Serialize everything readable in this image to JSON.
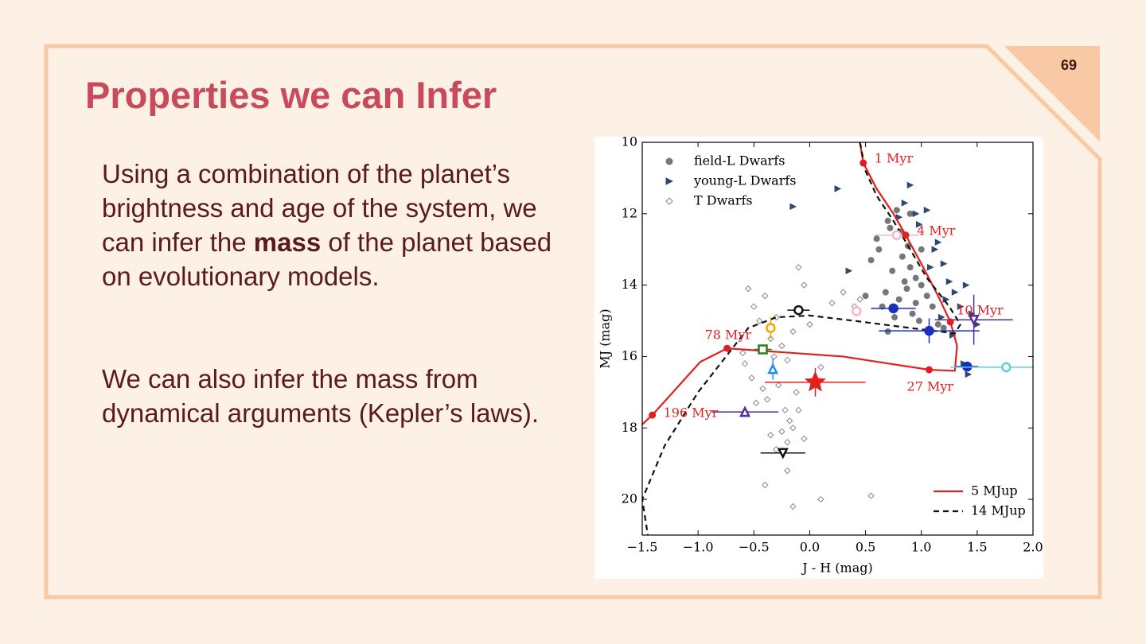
{
  "slide": {
    "page_number": "69",
    "title": "Properties we can Infer",
    "body": [
      [
        "Using a combination of the planet’s brightness and age of the system, we can infer the ",
        "mass",
        " of the planet based on evolutionary models."
      ],
      [
        "We can also infer the mass from dynamical arguments (Kepler’s laws)."
      ]
    ]
  },
  "chart_data": {
    "type": "scatter",
    "x_label": "J - H (mag)",
    "y_label": "MJ (mag)",
    "xlim": [
      -1.5,
      2.0
    ],
    "ylim": [
      21,
      10
    ],
    "xticks": [
      {
        "value": -1.5,
        "label": "−1.5"
      },
      {
        "value": -1.0,
        "label": "−1.0"
      },
      {
        "value": -0.5,
        "label": "−0.5"
      },
      {
        "value": 0.0,
        "label": "0.0"
      },
      0.5,
      {
        "value": 1.0,
        "label": "1.0"
      },
      1.5,
      {
        "value": 2.0,
        "label": "2.0"
      }
    ],
    "yticks": [
      10,
      12,
      14,
      16,
      18,
      20
    ],
    "series": [
      {
        "name": "field-L Dwarfs",
        "kind": "scatter",
        "marker": "circle",
        "color": "#777777",
        "legend": "upper left",
        "x": [
          0.55,
          0.62,
          0.7,
          0.78,
          0.82,
          0.88,
          0.9,
          0.95,
          1.0,
          1.05,
          0.68,
          0.74,
          0.8,
          0.85,
          0.92,
          0.98,
          1.1,
          1.15,
          0.6,
          0.72,
          0.83,
          0.9,
          1.0,
          0.65,
          0.76,
          0.87,
          0.95,
          1.2,
          0.5,
          0.7
        ],
        "values": [
          13.3,
          13.0,
          12.2,
          11.9,
          12.5,
          12.9,
          13.5,
          13.8,
          14.0,
          14.3,
          14.2,
          13.6,
          14.4,
          13.9,
          14.8,
          15.0,
          14.6,
          15.1,
          12.7,
          12.4,
          13.2,
          12.0,
          13.0,
          14.6,
          14.9,
          14.1,
          14.5,
          15.2,
          14.3,
          15.3
        ]
      },
      {
        "name": "young-L Dwarfs",
        "kind": "scatter",
        "marker": "triangle-right",
        "color": "#2f4a6e",
        "legend": "upper left",
        "x": [
          0.25,
          0.35,
          -0.15,
          0.85,
          0.95,
          1.05,
          1.15,
          1.2,
          1.25,
          1.3,
          1.35,
          1.4,
          1.45,
          1.12,
          0.98,
          1.08,
          1.22,
          0.9,
          1.28,
          1.38,
          1.5,
          1.18,
          0.8,
          1.42
        ],
        "values": [
          11.3,
          13.6,
          11.8,
          11.7,
          12.0,
          11.9,
          12.8,
          13.4,
          13.9,
          14.2,
          14.6,
          14.0,
          14.8,
          13.0,
          12.3,
          13.5,
          14.4,
          11.2,
          15.4,
          16.2,
          15.1,
          14.9,
          12.1,
          16.5
        ]
      },
      {
        "name": "T Dwarfs",
        "kind": "scatter",
        "marker": "diamond",
        "color": "#888888",
        "legend": "upper left",
        "x": [
          -0.55,
          -0.5,
          -0.45,
          -0.4,
          -0.35,
          -0.3,
          -0.25,
          -0.2,
          -0.15,
          -0.1,
          -0.05,
          0.0,
          0.1,
          0.2,
          0.3,
          0.4,
          0.45,
          -0.6,
          -0.52,
          -0.42,
          -0.38,
          -0.28,
          -0.22,
          -0.18,
          -0.12,
          -0.32,
          -0.48,
          -0.58,
          -0.35,
          -0.2,
          -0.25,
          -0.15,
          -0.1,
          -0.05,
          -0.4,
          -0.3,
          -0.2,
          0.1,
          0.55,
          -0.15
        ],
        "values": [
          14.1,
          14.6,
          15.0,
          14.3,
          15.5,
          14.9,
          15.7,
          16.1,
          15.3,
          13.5,
          14.0,
          15.1,
          16.3,
          14.5,
          14.2,
          14.6,
          14.4,
          15.9,
          16.6,
          16.9,
          17.2,
          16.8,
          17.5,
          17.8,
          17.0,
          16.0,
          17.3,
          16.2,
          18.2,
          18.4,
          18.1,
          18.0,
          17.5,
          18.3,
          19.6,
          18.6,
          19.2,
          20.0,
          19.9,
          20.2
        ]
      },
      {
        "name": "5 MJup",
        "kind": "line",
        "dash": false,
        "color": "#e02020",
        "legend": "lower right",
        "x": [
          0.45,
          0.48,
          0.6,
          0.75,
          0.86,
          1.0,
          1.15,
          1.26,
          1.32,
          1.3,
          1.07,
          0.3,
          -0.74,
          -0.98,
          -1.41,
          -1.5
        ],
        "values": [
          10.0,
          10.58,
          11.3,
          12.0,
          12.6,
          13.4,
          14.3,
          15.03,
          15.7,
          16.4,
          16.37,
          16.0,
          15.77,
          16.15,
          17.64,
          17.9
        ]
      },
      {
        "name": "14 MJup",
        "kind": "line",
        "dash": true,
        "color": "#111111",
        "legend": "lower right",
        "x": [
          0.45,
          0.5,
          0.6,
          0.75,
          0.9,
          1.05,
          1.25,
          1.35,
          1.3,
          0.9,
          0.4,
          0.0,
          -0.3,
          -0.55,
          -0.75,
          -1.0,
          -1.3,
          -1.5,
          -1.45
        ],
        "values": [
          10.0,
          10.8,
          11.5,
          12.2,
          13.0,
          13.8,
          14.6,
          15.1,
          15.35,
          15.2,
          15.0,
          14.85,
          14.9,
          15.2,
          16.0,
          17.0,
          18.5,
          20.0,
          21.0
        ]
      }
    ],
    "ages": {
      "color": "#e02020",
      "labels": [
        "1 Myr",
        "4 Myr",
        "10 Myr",
        "27 Myr",
        "78 Myr",
        "196 Myr"
      ],
      "x": [
        0.48,
        0.86,
        1.26,
        1.07,
        -0.74,
        -1.41
      ],
      "values": [
        10.58,
        12.6,
        15.03,
        16.37,
        15.77,
        17.64
      ]
    },
    "objects": [
      {
        "marker": "star",
        "color": "#e02020",
        "x": 0.05,
        "y": 16.72,
        "xerr": 0.45,
        "yerr": 0.4
      },
      {
        "marker": "dot",
        "color": "#1a2fbf",
        "x": 0.75,
        "y": 14.65,
        "xerr": 0.2
      },
      {
        "marker": "dot",
        "color": "#1a2fbf",
        "x": 1.07,
        "y": 15.28,
        "xerr": 0.45,
        "yerr": 0.35
      },
      {
        "marker": "dot",
        "color": "#1a2fbf",
        "x": 1.41,
        "y": 16.28,
        "xerr": 0.1
      },
      {
        "marker": "triangle-down",
        "color": "#5b2a9a",
        "x": 1.47,
        "y": 14.97,
        "xerr": 0.35,
        "yerr": 0.7
      },
      {
        "marker": "circle",
        "color": "#5fd0d8",
        "x": 1.76,
        "y": 16.3,
        "xerr": 0.5,
        "yerr": 0.15
      },
      {
        "marker": "circle",
        "color": "#f4b6c2",
        "x": 0.78,
        "y": 12.6,
        "xerr": 0.2
      },
      {
        "marker": "circle",
        "color": "#f4b6c2",
        "x": 0.42,
        "y": 14.73
      },
      {
        "marker": "circle",
        "color": "#111111",
        "x": -0.1,
        "y": 14.7,
        "xerr": 0.1
      },
      {
        "marker": "circle",
        "color": "#f5a500",
        "x": -0.35,
        "y": 15.2,
        "yerr": 0.3
      },
      {
        "marker": "square",
        "color": "#2f7a1a",
        "x": -0.42,
        "y": 15.8,
        "xerr": 0.08
      },
      {
        "marker": "triangle-up",
        "color": "#2a8de0",
        "x": -0.33,
        "y": 16.35,
        "yerr": 0.3
      },
      {
        "marker": "triangle-up",
        "color": "#5b2a9a",
        "x": -0.58,
        "y": 17.55,
        "xerr": 0.3
      },
      {
        "marker": "triangle-down",
        "color": "#111111",
        "x": -0.24,
        "y": 18.7,
        "xerr": 0.2
      }
    ]
  }
}
